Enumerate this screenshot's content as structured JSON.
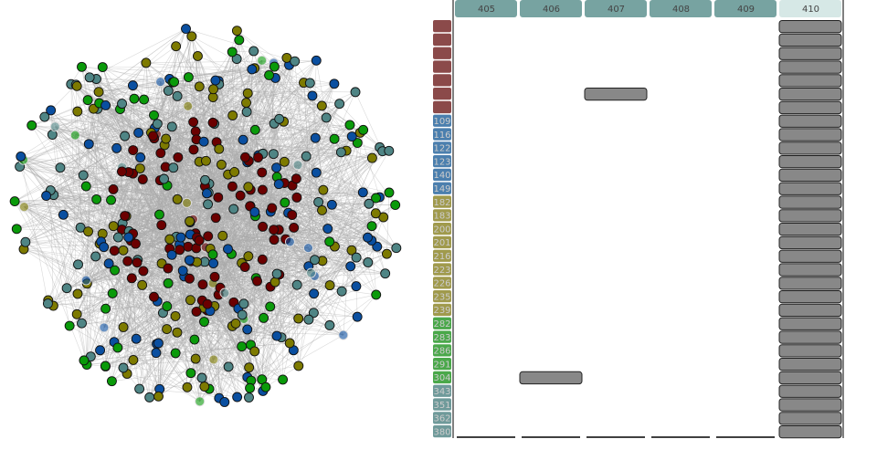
{
  "matrix": {
    "columns": [
      "405",
      "406",
      "407",
      "408",
      "409",
      "410"
    ],
    "highlighted_column": 5,
    "groups": [
      {
        "color": "#8b4a4a"
      },
      {
        "color": "#4b7fae"
      },
      {
        "color": "#a09a4c"
      },
      {
        "color": "#4aa84a"
      },
      {
        "color": "#6f9a9a"
      }
    ],
    "rows": [
      {
        "label": null,
        "group": 0,
        "filled": [
          5
        ]
      },
      {
        "label": null,
        "group": 0,
        "filled": [
          5
        ]
      },
      {
        "label": null,
        "group": 0,
        "filled": [
          5
        ]
      },
      {
        "label": null,
        "group": 0,
        "filled": [
          5
        ]
      },
      {
        "label": null,
        "group": 0,
        "filled": [
          5
        ]
      },
      {
        "label": null,
        "group": 0,
        "filled": [
          2,
          5
        ]
      },
      {
        "label": null,
        "group": 0,
        "filled": [
          5
        ]
      },
      {
        "label": "109",
        "group": 1,
        "filled": [
          5
        ]
      },
      {
        "label": "116",
        "group": 1,
        "filled": [
          5
        ]
      },
      {
        "label": "122",
        "group": 1,
        "filled": [
          5
        ]
      },
      {
        "label": "123",
        "group": 1,
        "filled": [
          5
        ]
      },
      {
        "label": "140",
        "group": 1,
        "filled": [
          5
        ]
      },
      {
        "label": "149",
        "group": 1,
        "filled": [
          5
        ]
      },
      {
        "label": "182",
        "group": 2,
        "filled": [
          5
        ]
      },
      {
        "label": "183",
        "group": 2,
        "filled": [
          5
        ]
      },
      {
        "label": "200",
        "group": 2,
        "filled": [
          5
        ]
      },
      {
        "label": "201",
        "group": 2,
        "filled": [
          5
        ]
      },
      {
        "label": "216",
        "group": 2,
        "filled": [
          5
        ]
      },
      {
        "label": "223",
        "group": 2,
        "filled": [
          5
        ]
      },
      {
        "label": "226",
        "group": 2,
        "filled": [
          5
        ]
      },
      {
        "label": "235",
        "group": 2,
        "filled": [
          5
        ]
      },
      {
        "label": "239",
        "group": 2,
        "filled": [
          5
        ]
      },
      {
        "label": "282",
        "group": 3,
        "filled": [
          5
        ]
      },
      {
        "label": "283",
        "group": 3,
        "filled": [
          5
        ]
      },
      {
        "label": "286",
        "group": 3,
        "filled": [
          5
        ]
      },
      {
        "label": "291",
        "group": 3,
        "filled": [
          5
        ]
      },
      {
        "label": "304",
        "group": 3,
        "filled": [
          1,
          5
        ]
      },
      {
        "label": "343",
        "group": 4,
        "filled": [
          5
        ]
      },
      {
        "label": "351",
        "group": 4,
        "filled": [
          5
        ]
      },
      {
        "label": "362",
        "group": 4,
        "filled": [
          5
        ]
      },
      {
        "label": "380",
        "group": 4,
        "filled": [
          5
        ]
      }
    ]
  }
}
